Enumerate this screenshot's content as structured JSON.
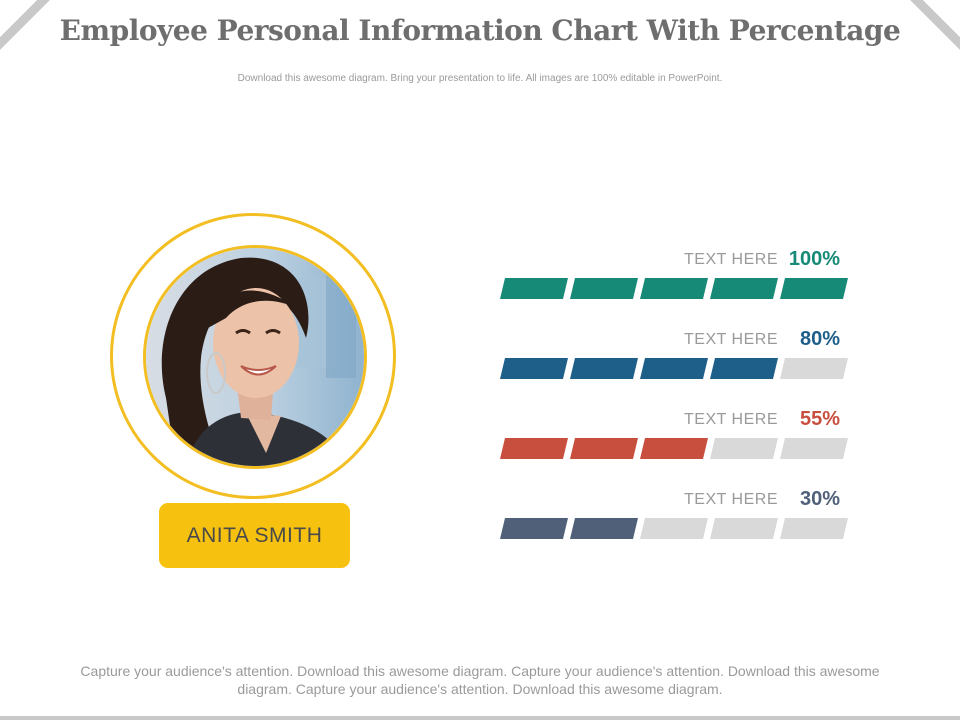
{
  "header": {
    "title": "Employee Personal Information Chart With Percentage",
    "subtitle": "Download this awesome diagram. Bring your presentation to life. All images are 100% editable in PowerPoint."
  },
  "profile": {
    "name": "ANITA SMITH",
    "ring_color": "#f2be22",
    "badge_color": "#f7c10f"
  },
  "chart_data": {
    "type": "bar",
    "segments_total": 5,
    "inactive_color": "#d9d9d9",
    "rows": [
      {
        "label": "TEXT HERE",
        "percent_text": "100%",
        "value": 100,
        "filled_segments": 5,
        "color": "#168a77"
      },
      {
        "label": "TEXT HERE",
        "percent_text": "80%",
        "value": 80,
        "filled_segments": 4,
        "color": "#1e5f8a"
      },
      {
        "label": "TEXT HERE",
        "percent_text": "55%",
        "value": 55,
        "filled_segments": 3,
        "color": "#c84f3e"
      },
      {
        "label": "TEXT HERE",
        "percent_text": "30%",
        "value": 30,
        "filled_segments": 2,
        "color": "#4f6078"
      }
    ]
  },
  "footer": {
    "text": "Capture your audience's attention. Download this awesome diagram. Capture your audience's attention. Download this awesome diagram. Capture your audience's attention. Download this awesome diagram."
  }
}
